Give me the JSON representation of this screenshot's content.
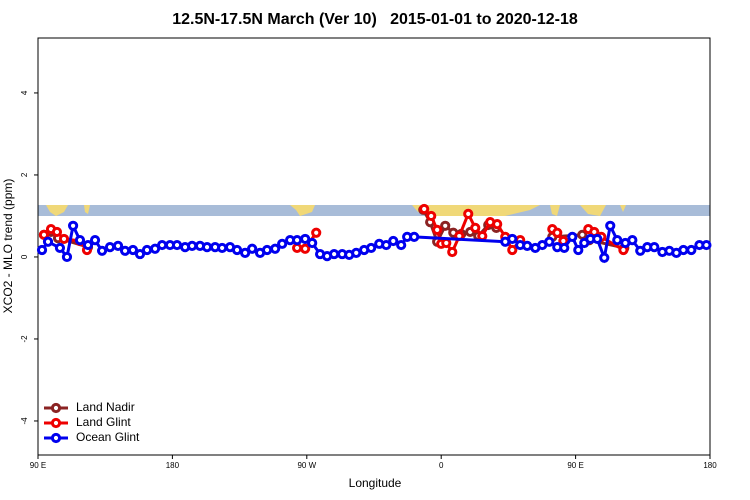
{
  "chart_data": {
    "type": "line",
    "title": "12.5N-17.5N March (Ver 10)   2015-01-01 to 2020-12-18",
    "x_label": "Longitude",
    "y_label": "XCO2 - MLO trend (ppm)",
    "xlim": [
      90,
      540
    ],
    "xticks": [
      {
        "value": 90,
        "label": "90 E"
      },
      180,
      {
        "value": 270,
        "label": "90 W"
      },
      {
        "value": 360,
        "label": "0"
      },
      {
        "value": 450,
        "label": "90 E"
      },
      {
        "value": 540,
        "label": "180"
      }
    ],
    "ylim": [
      -4.83,
      5.34
    ],
    "yticks": [
      -4,
      -2,
      0,
      2,
      4
    ],
    "legend": "bottom-left",
    "series": [
      {
        "name": "Land Nadir",
        "color": "#8b2323",
        "x": [
          94.0,
          98.7,
          103.4,
          123.5,
          null,
          348.0,
          352.6,
          357.3,
          362.7,
          368.1,
          373.4,
          379.4,
          384.8,
          391.5,
          396.9,
          null,
          434.4,
          454.5,
          459.2,
          482.6
        ],
        "values": [
          0.54,
          0.61,
          0.46,
          0.24,
          null,
          1.15,
          0.85,
          0.37,
          0.76,
          0.59,
          0.56,
          0.61,
          0.51,
          0.78,
          0.71,
          null,
          0.49,
          0.54,
          0.41,
          0.22
        ]
      },
      {
        "name": "Land Glint",
        "color": "#ee0000",
        "x": [
          94.0,
          98.7,
          102.7,
          107.4,
          118.1,
          122.8,
          null,
          263.5,
          268.9,
          276.3,
          null,
          348.6,
          353.3,
          357.3,
          360.0,
          363.4,
          367.4,
          372.1,
          378.1,
          382.8,
          387.5,
          392.8,
          397.5,
          402.9,
          407.6,
          412.9,
          null,
          434.4,
          437.7,
          441.8,
          null,
          458.5,
          462.5,
          467.2,
          482.0
        ],
        "values": [
          0.54,
          0.68,
          0.61,
          0.44,
          0.39,
          0.17,
          null,
          0.22,
          0.2,
          0.59,
          null,
          1.17,
          1.0,
          0.66,
          0.32,
          0.34,
          0.12,
          0.51,
          1.05,
          0.71,
          0.51,
          0.85,
          0.8,
          0.49,
          0.17,
          0.41,
          null,
          0.68,
          0.59,
          0.39,
          null,
          0.68,
          0.61,
          0.49,
          0.17
        ]
      },
      {
        "name": "Ocean Glint",
        "color": "#0000ee",
        "x": [
          92.7,
          96.7,
          104.7,
          109.4,
          113.5,
          118.1,
          123.5,
          128.2,
          132.9,
          138.2,
          143.6,
          148.3,
          153.6,
          158.3,
          163.0,
          168.4,
          173.1,
          178.4,
          183.1,
          188.5,
          193.2,
          198.5,
          203.2,
          208.6,
          213.3,
          218.6,
          223.3,
          228.7,
          233.4,
          238.7,
          243.4,
          248.8,
          253.5,
          258.8,
          263.5,
          268.9,
          273.6,
          278.9,
          283.6,
          288.3,
          293.7,
          298.4,
          303.1,
          308.4,
          313.1,
          318.5,
          323.2,
          327.9,
          333.2,
          337.2,
          341.9,
          402.9,
          407.6,
          412.9,
          417.6,
          423.0,
          427.7,
          432.4,
          437.7,
          442.4,
          447.8,
          451.8,
          455.8,
          459.9,
          464.5,
          469.2,
          473.2,
          477.9,
          483.3,
          488.0,
          493.3,
          498.0,
          502.7,
          508.1,
          512.8,
          517.5,
          522.2,
          527.5,
          532.9,
          537.6
        ],
        "values": [
          0.17,
          0.37,
          0.22,
          0.0,
          0.76,
          0.41,
          0.29,
          0.41,
          0.15,
          0.24,
          0.27,
          0.15,
          0.17,
          0.07,
          0.17,
          0.2,
          0.29,
          0.29,
          0.29,
          0.24,
          0.27,
          0.27,
          0.24,
          0.24,
          0.22,
          0.24,
          0.17,
          0.1,
          0.2,
          0.1,
          0.17,
          0.2,
          0.32,
          0.41,
          0.41,
          0.44,
          0.34,
          0.07,
          0.02,
          0.07,
          0.07,
          0.05,
          0.1,
          0.17,
          0.22,
          0.32,
          0.29,
          0.39,
          0.29,
          0.49,
          0.49,
          0.37,
          0.44,
          0.29,
          0.27,
          0.22,
          0.29,
          0.37,
          0.24,
          0.22,
          0.49,
          0.17,
          0.34,
          0.44,
          0.44,
          -0.02,
          0.76,
          0.41,
          0.34,
          0.41,
          0.15,
          0.24,
          0.24,
          0.12,
          0.15,
          0.1,
          0.17,
          0.17,
          0.29,
          0.29
        ]
      }
    ]
  }
}
